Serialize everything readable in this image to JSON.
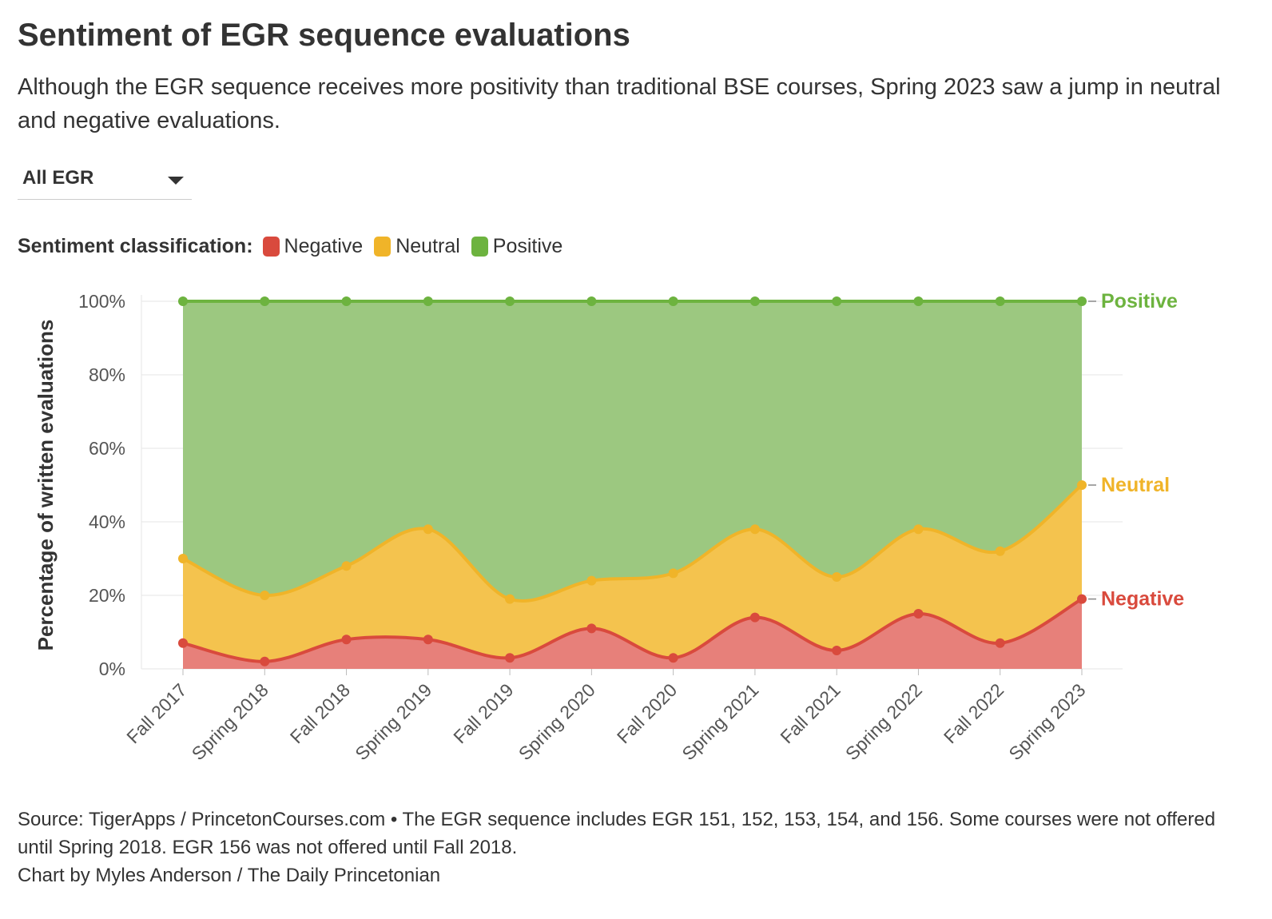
{
  "header": {
    "title": "Sentiment of EGR sequence evaluations",
    "subtitle": "Although the EGR sequence receives more positivity than traditional BSE courses, Spring 2023 saw a jump in neutral and negative evaluations."
  },
  "dropdown": {
    "selected": "All EGR",
    "icon": "chevron-down-icon"
  },
  "legend": {
    "title": "Sentiment classification:",
    "items": [
      {
        "label": "Negative",
        "color": "#d94a3d"
      },
      {
        "label": "Neutral",
        "color": "#f0b429"
      },
      {
        "label": "Positive",
        "color": "#6db33f"
      }
    ]
  },
  "footer": {
    "source": "Source: TigerApps / PrincetonCourses.com • The EGR sequence includes EGR 151, 152, 153, 154, and 156. Some courses were not offered until Spring 2018. EGR 156 was not offered until Fall 2018.",
    "credit": "Chart by Myles Anderson / The Daily Princetonian"
  },
  "chart_data": {
    "type": "area",
    "stacked": true,
    "categories": [
      "Fall 2017",
      "Spring 2018",
      "Fall 2018",
      "Spring 2019",
      "Fall 2019",
      "Spring 2020",
      "Fall 2020",
      "Spring 2021",
      "Fall 2021",
      "Spring 2022",
      "Fall 2022",
      "Spring 2023"
    ],
    "series": [
      {
        "name": "Negative",
        "values": [
          7,
          2,
          8,
          8,
          3,
          11,
          3,
          14,
          5,
          15,
          7,
          19
        ]
      },
      {
        "name": "Neutral",
        "values": [
          23,
          18,
          20,
          30,
          16,
          13,
          23,
          24,
          20,
          23,
          25,
          31
        ]
      },
      {
        "name": "Positive",
        "values": [
          70,
          80,
          72,
          62,
          81,
          76,
          74,
          62,
          75,
          62,
          68,
          50
        ]
      }
    ],
    "colors": {
      "Negative": "#d94a3d",
      "Neutral": "#f0b429",
      "Positive": "#6db33f"
    },
    "fill_colors": {
      "Negative": "#e7807a",
      "Neutral": "#f4c34e",
      "Positive": "#9cc880"
    },
    "end_labels": [
      "Negative",
      "Neutral",
      "Positive"
    ],
    "ylabel": "Percentage of written evaluations",
    "xlabel": "",
    "ylim": [
      0,
      100
    ],
    "yticks": [
      "0%",
      "20%",
      "40%",
      "60%",
      "80%",
      "100%"
    ],
    "ytick_values": [
      0,
      20,
      40,
      60,
      80,
      100
    ],
    "grid": true
  }
}
